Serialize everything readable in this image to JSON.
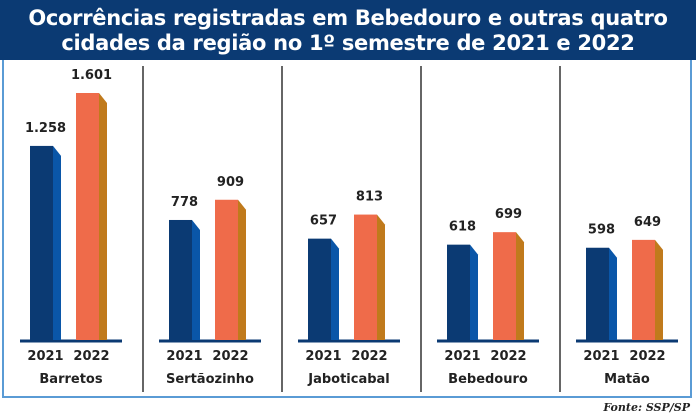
{
  "chart_data": {
    "type": "bar",
    "title": "Ocorrências registradas em Bebedouro e outras quatro cidades da região no 1º semestre de 2021 e 2022",
    "categories": [
      "Barretos",
      "Sertãozinho",
      "Jaboticabal",
      "Bebedouro",
      "Matão"
    ],
    "series": [
      {
        "name": "2021",
        "values": [
          1258,
          778,
          657,
          618,
          598
        ],
        "labels": [
          "1.258",
          "778",
          "657",
          "618",
          "598"
        ],
        "color": "#0b3a73",
        "side_color": "#0a56a8"
      },
      {
        "name": "2022",
        "values": [
          1601,
          909,
          813,
          699,
          649
        ],
        "labels": [
          "1.601",
          "909",
          "813",
          "699",
          "649"
        ],
        "color": "#ef6b4a",
        "side_color": "#c07a1c"
      }
    ],
    "ylim": [
      0,
      1601
    ],
    "grid": false,
    "source": "Fonte: SSP/SP"
  }
}
